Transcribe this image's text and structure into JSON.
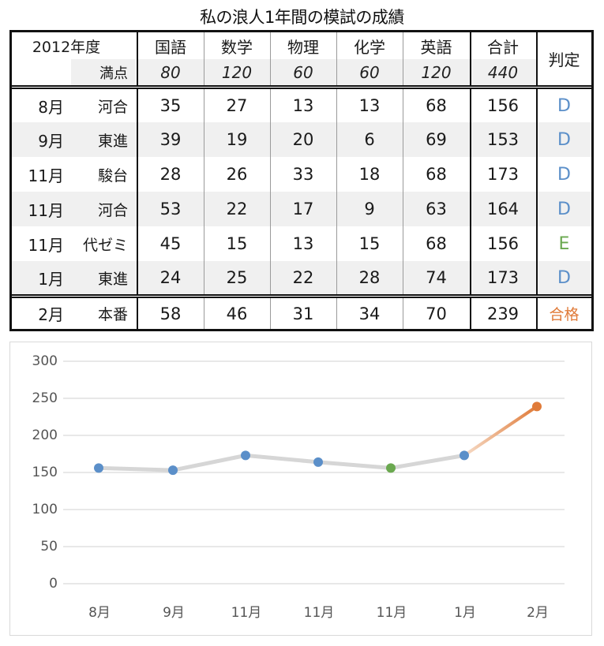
{
  "title": "私の浪人1年間の模試の成績",
  "table": {
    "year_label": "2012年度",
    "max_label": "満点",
    "subjects": [
      "国語",
      "数学",
      "物理",
      "化学",
      "英語",
      "合計"
    ],
    "max_scores": [
      "80",
      "120",
      "60",
      "60",
      "120",
      "440"
    ],
    "judgement_header": "判定",
    "rows": [
      {
        "month": "8月",
        "provider": "河合",
        "scores": [
          "35",
          "27",
          "13",
          "13",
          "68",
          "156"
        ],
        "judgement": "D"
      },
      {
        "month": "9月",
        "provider": "東進",
        "scores": [
          "39",
          "19",
          "20",
          "6",
          "69",
          "153"
        ],
        "judgement": "D"
      },
      {
        "month": "11月",
        "provider": "駿台",
        "scores": [
          "28",
          "26",
          "33",
          "18",
          "68",
          "173"
        ],
        "judgement": "D"
      },
      {
        "month": "11月",
        "provider": "河合",
        "scores": [
          "53",
          "22",
          "17",
          "9",
          "63",
          "164"
        ],
        "judgement": "D"
      },
      {
        "month": "11月",
        "provider": "代ゼミ",
        "scores": [
          "45",
          "15",
          "13",
          "15",
          "68",
          "156"
        ],
        "judgement": "E"
      },
      {
        "month": "1月",
        "provider": "東進",
        "scores": [
          "24",
          "25",
          "22",
          "28",
          "74",
          "173"
        ],
        "judgement": "D"
      }
    ],
    "final_row": {
      "month": "2月",
      "provider": "本番",
      "scores": [
        "58",
        "46",
        "31",
        "34",
        "70",
        "239"
      ],
      "judgement": "合格"
    }
  },
  "colors": {
    "judgement_D": "#5b8fc9",
    "judgement_E": "#6aa84f",
    "judgement_pass": "#e07b39",
    "line_gray": "#d6d6d6",
    "grid": "#d9d9d9",
    "row_shade": "#f0f0f0"
  },
  "chart_data": {
    "type": "line",
    "title": "",
    "xlabel": "",
    "ylabel": "",
    "categories": [
      "8月",
      "9月",
      "11月",
      "11月",
      "11月",
      "1月",
      "2月"
    ],
    "series": [
      {
        "name": "合計",
        "values": [
          156,
          153,
          173,
          164,
          156,
          173,
          239
        ]
      }
    ],
    "point_colors": [
      "#5b8fc9",
      "#5b8fc9",
      "#5b8fc9",
      "#5b8fc9",
      "#6aa84f",
      "#5b8fc9",
      "#e07b39"
    ],
    "ylim": [
      0,
      300
    ],
    "yticks": [
      "300",
      "250",
      "200",
      "150",
      "100",
      "50",
      "0"
    ],
    "grid": true,
    "legend": "none"
  }
}
